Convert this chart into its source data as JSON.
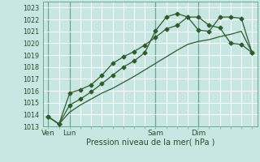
{
  "background_color": "#c8e6e2",
  "grid_color": "#ffffff",
  "line_color": "#2d5c2d",
  "vline_color": "#6aaa8a",
  "xlabel": "Pression niveau de la mer( hPa )",
  "ylim": [
    1013,
    1023.5
  ],
  "ytick_min": 1013,
  "ytick_max": 1023,
  "xtick_labels": [
    "Ven",
    "Lun",
    "Sam",
    "Dim"
  ],
  "xtick_positions": [
    0,
    2,
    10,
    14
  ],
  "n_points": 20,
  "line1_y": [
    1013.8,
    1013.2,
    1015.8,
    1016.1,
    1016.5,
    1017.3,
    1018.3,
    1018.85,
    1019.3,
    1019.85,
    1020.5,
    1021.2,
    1021.5,
    1022.2,
    1022.2,
    1021.5,
    1021.3,
    1020.0,
    1019.9,
    1019.2
  ],
  "line2_y": [
    1013.8,
    1013.2,
    1014.8,
    1015.3,
    1015.9,
    1016.6,
    1017.3,
    1018.0,
    1018.5,
    1019.2,
    1021.05,
    1022.2,
    1022.5,
    1022.2,
    1021.1,
    1021.0,
    1022.2,
    1022.2,
    1022.1,
    1019.2
  ],
  "line3_y": [
    1013.8,
    1013.2,
    1014.2,
    1014.8,
    1015.3,
    1015.8,
    1016.2,
    1016.7,
    1017.2,
    1017.75,
    1018.3,
    1018.85,
    1019.4,
    1019.9,
    1020.15,
    1020.3,
    1020.55,
    1020.75,
    1021.0,
    1019.2
  ]
}
